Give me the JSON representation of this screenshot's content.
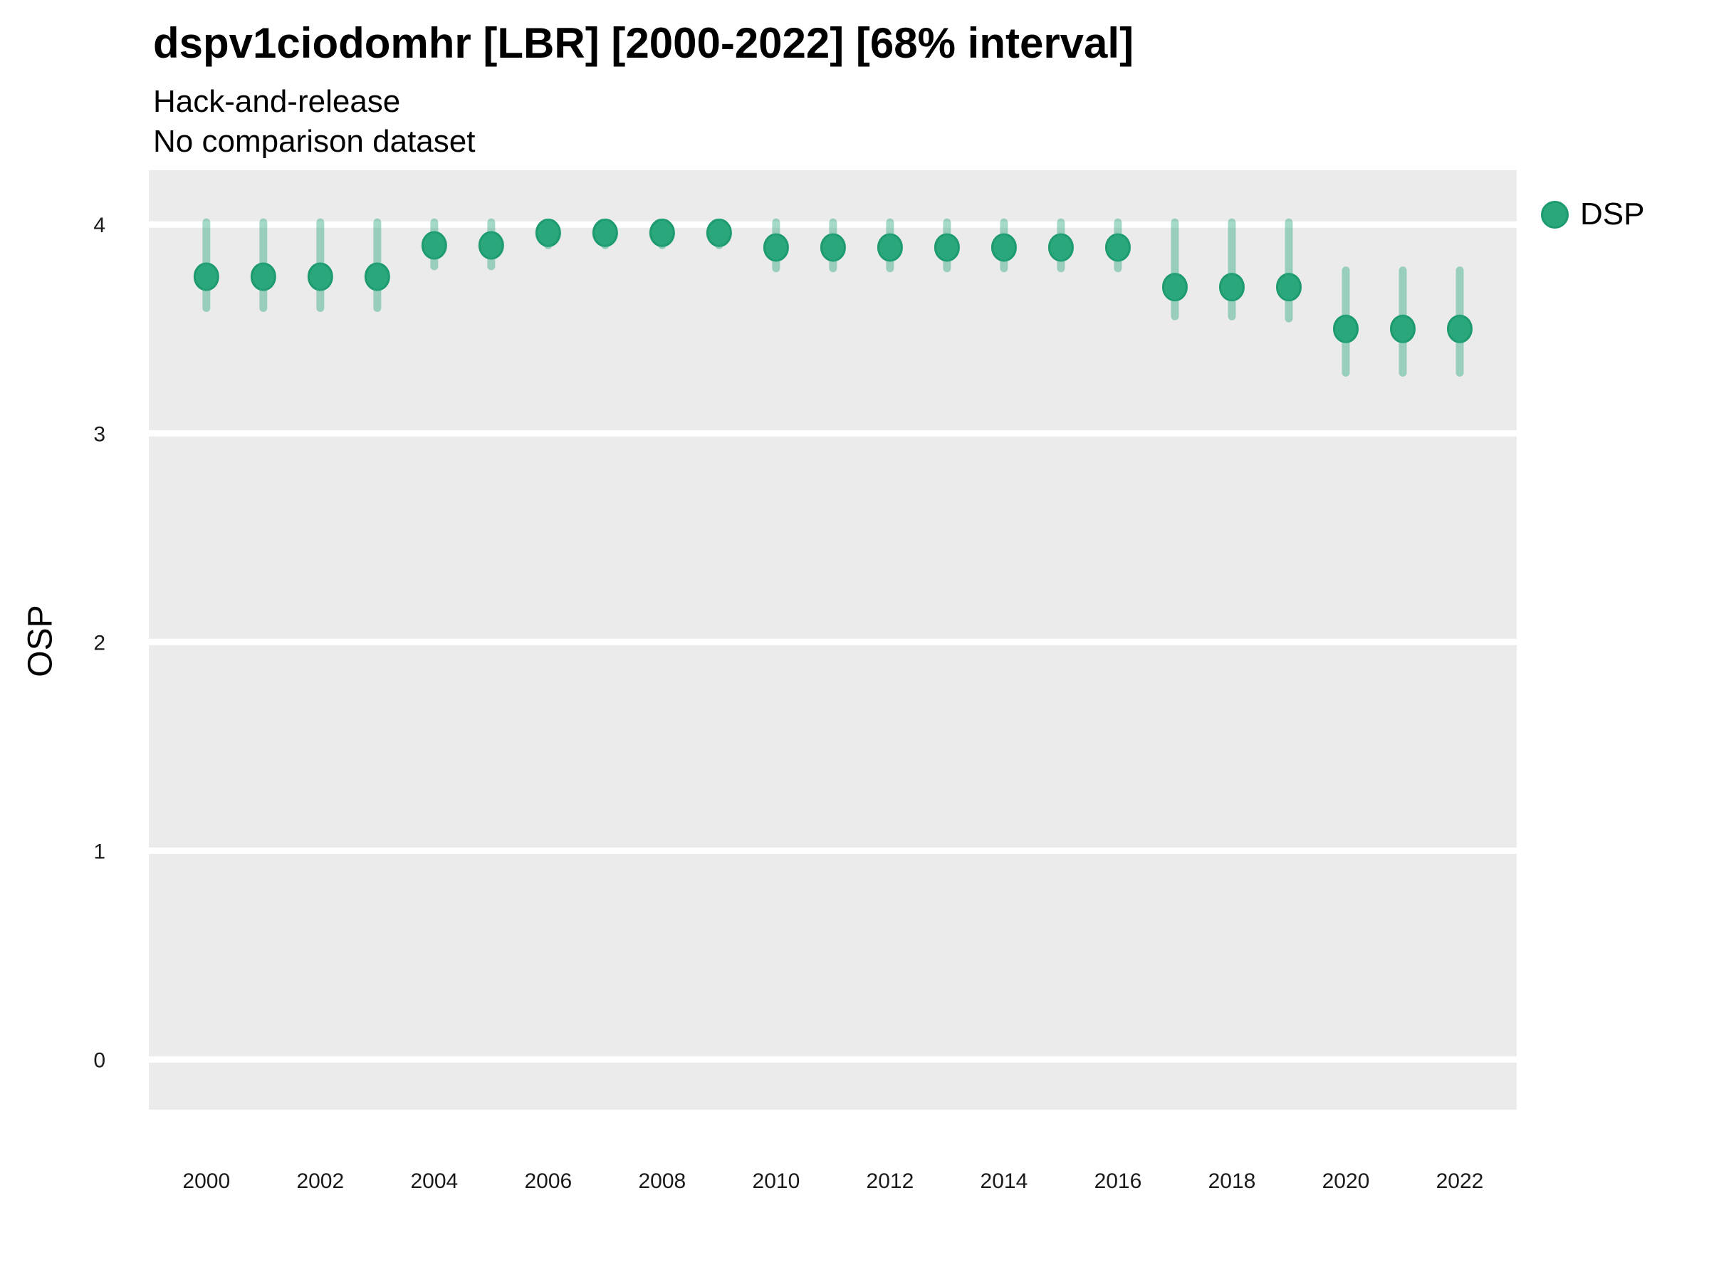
{
  "header": {
    "title": "dspv1ciodomhr [LBR] [2000-2022] [68% interval]",
    "subtitle": "Hack-and-release",
    "note": "No comparison dataset"
  },
  "legend": {
    "items": [
      {
        "label": "DSP",
        "color": "#2aa87c"
      }
    ]
  },
  "chart_data": {
    "type": "scatter",
    "title": "dspv1ciodomhr [LBR] [2000-2022] [68% interval]",
    "subtitle": "Hack-and-release",
    "note": "No comparison dataset",
    "xlabel": "",
    "ylabel": "OSP",
    "interval": "68%",
    "legend_position": "right",
    "grid": "major horizontal white lines on gray panel",
    "x": [
      2000,
      2001,
      2002,
      2003,
      2004,
      2005,
      2006,
      2007,
      2008,
      2009,
      2010,
      2011,
      2012,
      2013,
      2014,
      2015,
      2016,
      2017,
      2018,
      2019,
      2020,
      2021,
      2022
    ],
    "series": [
      {
        "name": "DSP",
        "values": [
          3.75,
          3.75,
          3.75,
          3.75,
          3.9,
          3.9,
          3.96,
          3.96,
          3.96,
          3.96,
          3.89,
          3.89,
          3.89,
          3.89,
          3.89,
          3.89,
          3.89,
          3.7,
          3.7,
          3.7,
          3.5,
          3.5,
          3.5
        ],
        "lower_68": [
          3.6,
          3.6,
          3.6,
          3.6,
          3.8,
          3.8,
          3.9,
          3.9,
          3.9,
          3.9,
          3.79,
          3.79,
          3.79,
          3.79,
          3.79,
          3.79,
          3.79,
          3.56,
          3.56,
          3.55,
          3.29,
          3.29,
          3.29
        ],
        "upper_68": [
          4.01,
          4.01,
          4.01,
          4.01,
          4.01,
          4.01,
          4.01,
          4.01,
          4.01,
          4.01,
          4.01,
          4.01,
          4.01,
          4.01,
          4.01,
          4.01,
          4.01,
          4.01,
          4.01,
          4.01,
          3.78,
          3.78,
          3.78
        ]
      }
    ],
    "x_ticks": [
      2000,
      2002,
      2004,
      2006,
      2008,
      2010,
      2012,
      2014,
      2016,
      2018,
      2020,
      2022
    ],
    "y_ticks": [
      0,
      1,
      2,
      3,
      4
    ],
    "xlim": [
      1998.99,
      2023.0
    ],
    "ylim": [
      -0.24,
      4.26
    ],
    "colors": {
      "point": "#2aa87c",
      "point_stroke": "#1d9b6e",
      "interval": "rgba(42,168,124,0.42)",
      "panel_bg": "#ebebeb",
      "grid": "#ffffff",
      "tick_text": "#1a1a1a"
    }
  }
}
